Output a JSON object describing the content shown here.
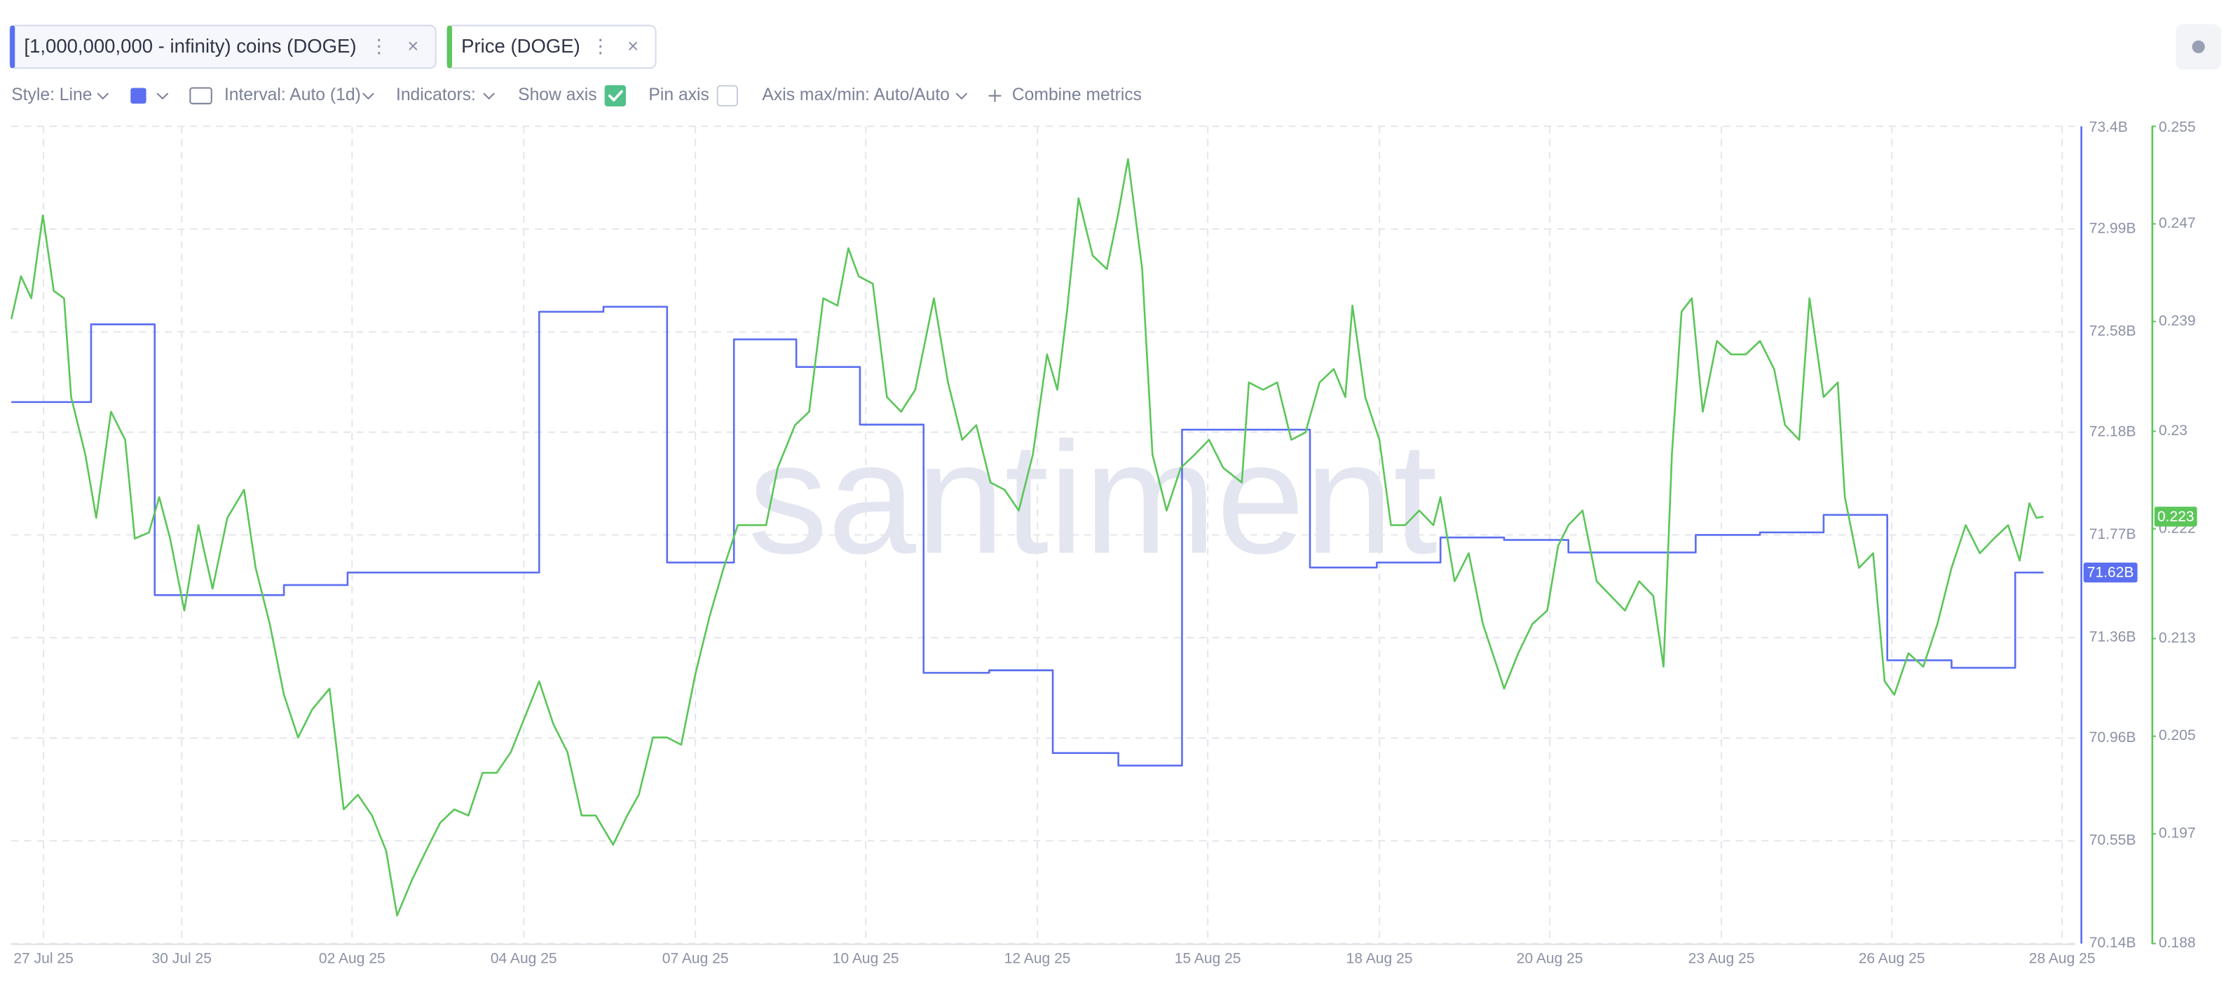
{
  "toolbar": {
    "style": "Style: Line",
    "interval": "Interval: Auto (1d)",
    "indicators": "Indicators:",
    "show_axis": "Show axis",
    "pin_axis": "Pin axis",
    "axis_minmax": "Axis max/min: Auto/Auto",
    "combine": "Combine metrics"
  },
  "chart_data": {
    "type": "line",
    "watermark": "santiment",
    "grid": true,
    "xlim": [
      0,
      32.1
    ],
    "xticks": [
      {
        "value": 0.5,
        "label": "27 Jul 25"
      },
      {
        "value": 2.65,
        "label": "30 Jul 25"
      },
      {
        "value": 5.3,
        "label": "02 Aug 25"
      },
      {
        "value": 7.97,
        "label": "04 Aug 25"
      },
      {
        "value": 10.64,
        "label": "07 Aug 25"
      },
      {
        "value": 13.29,
        "label": "10 Aug 25"
      },
      {
        "value": 15.96,
        "label": "12 Aug 25"
      },
      {
        "value": 18.61,
        "label": "15 Aug 25"
      },
      {
        "value": 21.28,
        "label": "18 Aug 25"
      },
      {
        "value": 23.93,
        "label": "20 Aug 25"
      },
      {
        "value": 26.6,
        "label": "23 Aug 25"
      },
      {
        "value": 29.25,
        "label": "26 Aug 25"
      },
      {
        "value": 31.9,
        "label": "28 Aug 25"
      }
    ],
    "ylim": [
      70.14,
      73.4
    ],
    "yticks": [
      {
        "value": 73.4,
        "label": "73.4B"
      },
      {
        "value": 72.99,
        "label": "72.99B"
      },
      {
        "value": 72.58,
        "label": "72.58B"
      },
      {
        "value": 72.18,
        "label": "72.18B"
      },
      {
        "value": 71.77,
        "label": "71.77B"
      },
      {
        "value": 71.36,
        "label": "71.36B"
      },
      {
        "value": 70.96,
        "label": "70.96B"
      },
      {
        "value": 70.55,
        "label": "70.55B"
      },
      {
        "value": 70.14,
        "label": "70.14B"
      }
    ],
    "y2lim": [
      0.188,
      0.255
    ],
    "y2ticks": [
      0.255,
      0.247,
      0.239,
      0.23,
      0.222,
      0.213,
      0.205,
      0.197,
      0.188
    ],
    "series": [
      {
        "name": "[1,000,000,000 - infinity) coins (DOGE)",
        "color": "#5b6ff0",
        "axis": "y",
        "step": true,
        "last_value_label": "71.62B",
        "x": [
          0,
          1.24,
          2.23,
          4.24,
          5.23,
          8.21,
          9.21,
          10.2,
          11.24,
          12.21,
          13.2,
          14.19,
          15.21,
          16.2,
          17.22,
          18.21,
          19.2,
          20.2,
          21.24,
          22.23,
          23.22,
          24.22,
          25.21,
          26.2,
          27.2,
          28.19,
          29.18,
          30.18,
          31.17,
          31.61
        ],
        "values": [
          72.3,
          72.61,
          71.53,
          71.57,
          71.62,
          72.66,
          72.68,
          71.66,
          72.55,
          72.44,
          72.21,
          71.22,
          71.23,
          70.9,
          70.85,
          72.19,
          72.19,
          71.64,
          71.66,
          71.76,
          71.75,
          71.7,
          71.7,
          71.77,
          71.78,
          71.85,
          71.27,
          71.24,
          71.62,
          71.62
        ]
      },
      {
        "name": "Price (DOGE)",
        "color": "#5cc65a",
        "axis": "y2",
        "step": false,
        "last_value_label": "0.223",
        "x": [
          0,
          0.15,
          0.31,
          0.49,
          0.66,
          0.82,
          0.93,
          1.15,
          1.32,
          1.55,
          1.77,
          1.92,
          2.14,
          2.3,
          2.47,
          2.69,
          2.91,
          3.13,
          3.36,
          3.62,
          3.8,
          4.02,
          4.24,
          4.46,
          4.68,
          4.95,
          5.17,
          5.39,
          5.61,
          5.83,
          6.0,
          6.23,
          6.45,
          6.67,
          6.89,
          7.11,
          7.33,
          7.55,
          7.77,
          7.99,
          8.21,
          8.43,
          8.65,
          8.87,
          9.09,
          9.36,
          9.58,
          9.76,
          9.98,
          10.2,
          10.42,
          10.64,
          10.86,
          11.08,
          11.3,
          11.52,
          11.74,
          11.92,
          12.19,
          12.41,
          12.63,
          12.85,
          13.02,
          13.18,
          13.4,
          13.62,
          13.84,
          14.06,
          14.35,
          14.57,
          14.79,
          15.01,
          15.23,
          15.45,
          15.67,
          15.89,
          16.11,
          16.27,
          16.42,
          16.6,
          16.82,
          17.04,
          17.22,
          17.37,
          17.59,
          17.75,
          17.97,
          18.19,
          18.41,
          18.63,
          18.85,
          19.14,
          19.25,
          19.47,
          19.69,
          19.91,
          20.13,
          20.35,
          20.57,
          20.75,
          20.86,
          21.06,
          21.28,
          21.46,
          21.68,
          21.9,
          22.12,
          22.23,
          22.45,
          22.67,
          22.89,
          23.11,
          23.22,
          23.44,
          23.66,
          23.89,
          24.06,
          24.22,
          24.44,
          24.66,
          24.88,
          25.1,
          25.32,
          25.54,
          25.7,
          25.83,
          25.98,
          26.14,
          26.31,
          26.53,
          26.75,
          26.98,
          27.2,
          27.42,
          27.59,
          27.81,
          27.97,
          28.19,
          28.41,
          28.52,
          28.74,
          28.96,
          29.14,
          29.29,
          29.51,
          29.74,
          29.96,
          30.18,
          30.4,
          30.62,
          30.84,
          31.06,
          31.24,
          31.39,
          31.5,
          31.61
        ],
        "values": [
          0.2392,
          0.2427,
          0.2409,
          0.2477,
          0.2415,
          0.2409,
          0.2328,
          0.2281,
          0.2229,
          0.2316,
          0.2293,
          0.2212,
          0.2217,
          0.2246,
          0.2212,
          0.2153,
          0.2223,
          0.2171,
          0.2229,
          0.2252,
          0.2188,
          0.2142,
          0.2084,
          0.2049,
          0.2072,
          0.2089,
          0.199,
          0.2002,
          0.1985,
          0.1956,
          0.1903,
          0.1932,
          0.1956,
          0.1979,
          0.199,
          0.1985,
          0.202,
          0.202,
          0.2037,
          0.2066,
          0.2095,
          0.206,
          0.2037,
          0.1985,
          0.1985,
          0.1961,
          0.1985,
          0.2002,
          0.2049,
          0.2049,
          0.2043,
          0.2101,
          0.2148,
          0.2188,
          0.2223,
          0.2223,
          0.2223,
          0.227,
          0.2305,
          0.2316,
          0.2409,
          0.2403,
          0.245,
          0.2427,
          0.2421,
          0.2328,
          0.2316,
          0.2334,
          0.2409,
          0.234,
          0.2293,
          0.2305,
          0.2258,
          0.2252,
          0.2235,
          0.2281,
          0.2363,
          0.2334,
          0.2398,
          0.2491,
          0.2444,
          0.2433,
          0.2479,
          0.2523,
          0.2433,
          0.2281,
          0.2235,
          0.227,
          0.2281,
          0.2293,
          0.227,
          0.2258,
          0.234,
          0.2334,
          0.234,
          0.2293,
          0.2299,
          0.234,
          0.2351,
          0.2328,
          0.2403,
          0.2328,
          0.2293,
          0.2223,
          0.2223,
          0.2235,
          0.2223,
          0.2246,
          0.2177,
          0.22,
          0.2142,
          0.2107,
          0.2089,
          0.2118,
          0.2142,
          0.2153,
          0.2206,
          0.2223,
          0.2235,
          0.2177,
          0.2165,
          0.2153,
          0.2177,
          0.2165,
          0.2107,
          0.2281,
          0.2398,
          0.2409,
          0.2316,
          0.2374,
          0.2363,
          0.2363,
          0.2374,
          0.2351,
          0.2305,
          0.2293,
          0.2409,
          0.2328,
          0.234,
          0.2246,
          0.2188,
          0.22,
          0.2095,
          0.2084,
          0.2118,
          0.2107,
          0.2142,
          0.2188,
          0.2223,
          0.22,
          0.2212,
          0.2223,
          0.2194,
          0.2241,
          0.2229,
          0.223
        ]
      }
    ]
  }
}
